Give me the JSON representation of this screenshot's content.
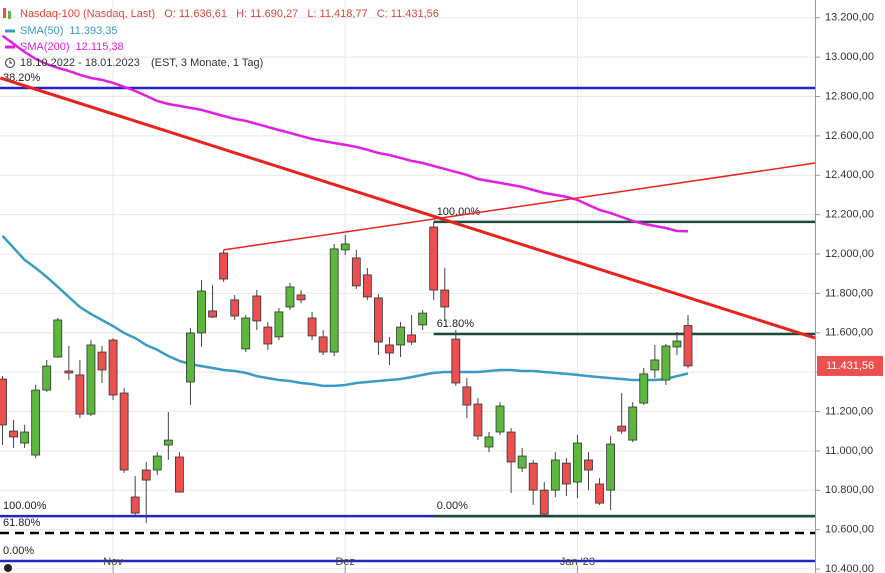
{
  "chart_data": {
    "type": "candlestick",
    "header": {
      "title": "Nasdaq-100 (Nasdaq, Last)",
      "ohlc": [
        "O: 11.636,61",
        "H: 11.690,27",
        "L: 11.418,77",
        "C: 11.431,56"
      ],
      "range": "18.10.2022 - 18.01.2023",
      "range_note": "(EST, 3 Monate, 1 Tag)"
    },
    "categories": [
      null,
      null,
      null,
      null,
      null,
      null,
      null,
      null,
      null,
      null,
      "Nov",
      null,
      null,
      null,
      null,
      null,
      null,
      null,
      null,
      null,
      null,
      null,
      null,
      null,
      null,
      null,
      null,
      null,
      null,
      null,
      null,
      "Dez",
      null,
      null,
      null,
      null,
      null,
      null,
      null,
      null,
      null,
      null,
      null,
      null,
      null,
      null,
      null,
      null,
      null,
      null,
      null,
      null,
      "Jan '23",
      null,
      null,
      null,
      null,
      null,
      null,
      null,
      null,
      null,
      null
    ],
    "open": [
      11365,
      11101,
      11040,
      10979,
      11309,
      11477,
      11406,
      11386,
      11187,
      11502,
      11563,
      11294,
      10766,
      10903,
      10903,
      11030,
      10969,
      11350,
      11599,
      11711,
      12005,
      11767,
      11518,
      11787,
      11629,
      11579,
      11731,
      11792,
      11675,
      11579,
      11502,
      12021,
      11980,
      11894,
      11777,
      11538,
      11538,
      11589,
      11640,
      12137,
      11817,
      11568,
      11325,
      11238,
      11020,
      11096,
      11096,
      10913,
      10938,
      10801,
      10801,
      10938,
      10842,
      10954,
      10832,
      10801,
      11126,
      11055,
      11243,
      11411,
      11360,
      11528,
      11636.61
    ],
    "high": [
      11380,
      11157,
      11132,
      11335,
      11462,
      11675,
      11533,
      11462,
      11563,
      11533,
      11573,
      11319,
      10872,
      10944,
      10994,
      11198,
      10994,
      11624,
      11868,
      11843,
      12021,
      11792,
      11690,
      11817,
      11655,
      11726,
      11853,
      11817,
      11706,
      11614,
      12051,
      12097,
      12021,
      11929,
      11797,
      11579,
      11655,
      11690,
      11716,
      12163,
      11929,
      11614,
      11370,
      11269,
      11096,
      11248,
      11116,
      11015,
      10954,
      10842,
      10994,
      10964,
      11081,
      10994,
      10862,
      11076,
      11294,
      11248,
      11421,
      11538,
      11543,
      11604,
      11690.27
    ],
    "low": [
      11030,
      11015,
      11015,
      10964,
      11299,
      11472,
      11360,
      11167,
      11177,
      11345,
      11259,
      10888,
      10674,
      10634,
      10878,
      10954,
      10791,
      11233,
      11528,
      11675,
      11858,
      11665,
      11502,
      11614,
      11513,
      11563,
      11716,
      11751,
      11563,
      11487,
      11482,
      11995,
      11822,
      11767,
      11487,
      11436,
      11477,
      11538,
      11614,
      11767,
      11665,
      11330,
      11167,
      11055,
      10994,
      11081,
      10786,
      10893,
      10725,
      10669,
      10766,
      10771,
      10761,
      10801,
      10725,
      10700,
      11086,
      11045,
      11233,
      11370,
      11335,
      11487,
      11418.77
    ],
    "close": [
      11132,
      11071,
      11096,
      11309,
      11431,
      11665,
      11396,
      11187,
      11538,
      11411,
      11284,
      10903,
      10684,
      10852,
      10974,
      11055,
      10791,
      11599,
      11812,
      11680,
      11873,
      11685,
      11675,
      11660,
      11543,
      11706,
      11833,
      11767,
      11584,
      11502,
      12026,
      12051,
      11838,
      11782,
      11553,
      11497,
      11629,
      11553,
      11700,
      11817,
      11731,
      11345,
      11233,
      11076,
      11071,
      11228,
      10944,
      10974,
      10801,
      10679,
      10954,
      10832,
      11040,
      10903,
      10735,
      11035,
      11101,
      11223,
      11391,
      11462,
      11533,
      11558,
      11431.56
    ],
    "up_color": "#5cb83c",
    "down_color": "#ec4f4f",
    "series": [
      {
        "name": "SMA(50)",
        "value_label": "11.393,35",
        "color": "#3a9cc4",
        "values": [
          12092,
          12031,
          11970,
          11929,
          11883,
          11833,
          11782,
          11731,
          11695,
          11665,
          11634,
          11599,
          11573,
          11538,
          11513,
          11482,
          11457,
          11441,
          11431,
          11421,
          11411,
          11406,
          11396,
          11380,
          11370,
          11360,
          11355,
          11345,
          11340,
          11330,
          11330,
          11335,
          11345,
          11350,
          11355,
          11360,
          11365,
          11375,
          11386,
          11396,
          11401,
          11401,
          11401,
          11401,
          11406,
          11411,
          11411,
          11406,
          11406,
          11401,
          11396,
          11391,
          11386,
          11380,
          11375,
          11370,
          11365,
          11360,
          11360,
          11360,
          11365,
          11380,
          11393.35
        ]
      },
      {
        "name": "SMA(200)",
        "value_label": "12.115,38",
        "color": "#e020e0",
        "values": [
          13108,
          13067,
          13026,
          12991,
          12965,
          12945,
          12930,
          12910,
          12894,
          12884,
          12869,
          12849,
          12828,
          12803,
          12777,
          12762,
          12752,
          12742,
          12732,
          12716,
          12701,
          12686,
          12676,
          12661,
          12645,
          12630,
          12615,
          12600,
          12584,
          12574,
          12564,
          12554,
          12544,
          12529,
          12513,
          12503,
          12488,
          12473,
          12462,
          12447,
          12432,
          12417,
          12402,
          12381,
          12371,
          12361,
          12351,
          12341,
          12325,
          12310,
          12300,
          12290,
          12275,
          12249,
          12224,
          12208,
          12188,
          12168,
          12153,
          12142,
          12132,
          12117,
          12115.38
        ]
      }
    ],
    "trendlines": [
      {
        "color": "#e8231c",
        "width": 3,
        "from": [
          -0.2,
          12894
        ],
        "to": [
          73.5,
          11573
        ]
      },
      {
        "color": "#e8231c",
        "width": 1.5,
        "from": [
          20,
          12021
        ],
        "to": [
          73.5,
          12462
        ]
      }
    ],
    "levels": [
      {
        "value": 12843,
        "color": "#2424c8",
        "label": "38.20%"
      },
      {
        "value": 10669,
        "color": "#2424c8",
        "label": "100.00%"
      },
      {
        "value": 10583,
        "color": "#000000",
        "label": "61.80%",
        "dash": true
      },
      {
        "value": 10441,
        "color": "#2424c8",
        "label": "0.00%"
      },
      {
        "value": 12163,
        "color": "#1d4a3a",
        "label": "100.00%",
        "from": 39
      },
      {
        "value": 11594,
        "color": "#1d4a3a",
        "label": "61.80%",
        "from": 39
      },
      {
        "value": 10669,
        "color": "#1d4a3a",
        "label": "0.00%",
        "from": 39
      }
    ],
    "last_price_label": "11.431,56",
    "ylim": [
      10380,
      13290
    ],
    "yticks": [
      {
        "value": 10400,
        "label": "10.400,00"
      },
      {
        "value": 10600,
        "label": "10.600,00"
      },
      {
        "value": 10800,
        "label": "10.800,00"
      },
      {
        "value": 11000,
        "label": "11.000,00"
      },
      {
        "value": 11200,
        "label": "11.200,00"
      },
      {
        "value": 11400,
        "label": "11.400,00"
      },
      {
        "value": 11600,
        "label": "11.600,00"
      },
      {
        "value": 11800,
        "label": "11.800,00"
      },
      {
        "value": 12000,
        "label": "12.000,00"
      },
      {
        "value": 12200,
        "label": "12.200,00"
      },
      {
        "value": 12400,
        "label": "12.400,00"
      },
      {
        "value": 12600,
        "label": "12.600,00"
      },
      {
        "value": 12800,
        "label": "12.800,00"
      },
      {
        "value": 13000,
        "label": "13.000,00"
      },
      {
        "value": 13200,
        "label": "13.200,00"
      }
    ],
    "grid": true
  }
}
